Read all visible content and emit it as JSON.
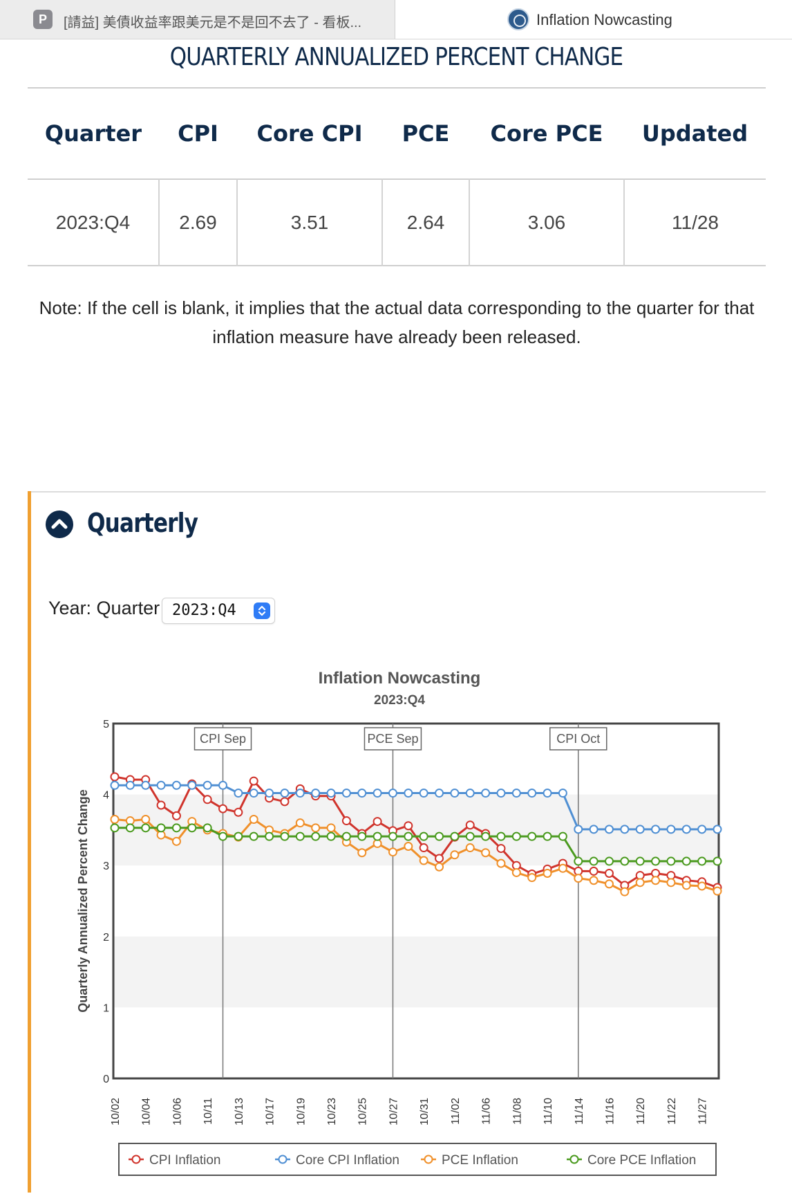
{
  "tabs": [
    {
      "favicon": "P",
      "title": "[請益] 美債收益率跟美元是不是回不去了 - 看板..."
    },
    {
      "favicon": "fed-seal-icon",
      "title": "Inflation Nowcasting"
    }
  ],
  "section_title": "QUARTERLY ANNUALIZED PERCENT CHANGE",
  "table": {
    "headers": [
      "Quarter",
      "CPI",
      "Core CPI",
      "PCE",
      "Core PCE",
      "Updated"
    ],
    "rows": [
      [
        "2023:Q4",
        "2.69",
        "3.51",
        "2.64",
        "3.06",
        "11/28"
      ]
    ]
  },
  "note": "Note: If the cell is blank, it implies that the actual data corresponding to the quarter for that inflation measure have already been released.",
  "panel": {
    "title": "Quarterly",
    "accent_color": "#f0a031"
  },
  "selector": {
    "label": "Year: Quarter",
    "value": "2023:Q4"
  },
  "chart_data": {
    "type": "line",
    "title": "Inflation Nowcasting",
    "subtitle": "2023:Q4",
    "ylabel": "Quarterly Annualized Percent Change",
    "ylim": [
      0,
      5
    ],
    "yticks": [
      0,
      1,
      2,
      3,
      4,
      5
    ],
    "x": [
      "10/02",
      "10/03",
      "10/04",
      "10/05",
      "10/06",
      "10/10",
      "10/11",
      "10/12",
      "10/13",
      "10/16",
      "10/17",
      "10/18",
      "10/19",
      "10/20",
      "10/23",
      "10/24",
      "10/25",
      "10/26",
      "10/27",
      "10/30",
      "10/31",
      "11/01",
      "11/02",
      "11/03",
      "11/06",
      "11/07",
      "11/08",
      "11/09",
      "11/10",
      "11/13",
      "11/14",
      "11/15",
      "11/16",
      "11/17",
      "11/20",
      "11/21",
      "11/22",
      "11/24",
      "11/27",
      "11/28"
    ],
    "xtick_labels": [
      "10/02",
      "10/04",
      "10/06",
      "10/11",
      "10/13",
      "10/17",
      "10/19",
      "10/23",
      "10/25",
      "10/27",
      "10/31",
      "11/02",
      "11/06",
      "11/08",
      "11/10",
      "11/14",
      "11/16",
      "11/20",
      "11/22",
      "11/27"
    ],
    "bands": [
      [
        3,
        4
      ],
      [
        1,
        2
      ]
    ],
    "event_lines": [
      {
        "label": "CPI Sep",
        "x": "10/12"
      },
      {
        "label": "PCE Sep",
        "x": "10/27"
      },
      {
        "label": "CPI Oct",
        "x": "11/14"
      }
    ],
    "series": [
      {
        "name": "CPI Inflation",
        "color": "#d0342c",
        "values": [
          4.25,
          4.21,
          4.21,
          3.85,
          3.7,
          4.15,
          3.93,
          3.8,
          3.75,
          4.19,
          3.95,
          3.9,
          4.08,
          3.98,
          3.98,
          3.63,
          3.45,
          3.62,
          3.49,
          3.56,
          3.25,
          3.1,
          3.4,
          3.57,
          3.45,
          3.24,
          3.0,
          2.88,
          2.95,
          3.03,
          2.92,
          2.92,
          2.89,
          2.72,
          2.86,
          2.89,
          2.86,
          2.79,
          2.77,
          2.69
        ]
      },
      {
        "name": "Core CPI Inflation",
        "color": "#4f8fd3",
        "values": [
          4.13,
          4.13,
          4.13,
          4.13,
          4.13,
          4.13,
          4.13,
          4.13,
          4.02,
          4.02,
          4.02,
          4.02,
          4.02,
          4.02,
          4.02,
          4.02,
          4.02,
          4.02,
          4.02,
          4.02,
          4.02,
          4.02,
          4.02,
          4.02,
          4.02,
          4.02,
          4.02,
          4.02,
          4.02,
          4.02,
          3.51,
          3.51,
          3.51,
          3.51,
          3.51,
          3.51,
          3.51,
          3.51,
          3.51,
          3.51
        ]
      },
      {
        "name": "PCE Inflation",
        "color": "#f0902a",
        "values": [
          3.65,
          3.63,
          3.65,
          3.43,
          3.34,
          3.62,
          3.5,
          3.45,
          3.4,
          3.65,
          3.5,
          3.45,
          3.6,
          3.53,
          3.53,
          3.33,
          3.18,
          3.31,
          3.19,
          3.27,
          3.07,
          2.98,
          3.15,
          3.25,
          3.18,
          3.03,
          2.9,
          2.83,
          2.89,
          2.96,
          2.82,
          2.79,
          2.74,
          2.63,
          2.76,
          2.79,
          2.76,
          2.72,
          2.71,
          2.64
        ]
      },
      {
        "name": "Core PCE Inflation",
        "color": "#4a9a1e",
        "values": [
          3.53,
          3.53,
          3.53,
          3.53,
          3.53,
          3.53,
          3.53,
          3.41,
          3.41,
          3.41,
          3.41,
          3.41,
          3.41,
          3.41,
          3.41,
          3.41,
          3.41,
          3.41,
          3.41,
          3.41,
          3.41,
          3.41,
          3.41,
          3.41,
          3.41,
          3.41,
          3.41,
          3.41,
          3.41,
          3.41,
          3.06,
          3.06,
          3.06,
          3.06,
          3.06,
          3.06,
          3.06,
          3.06,
          3.06,
          3.06
        ]
      }
    ],
    "legend_position": "bottom",
    "grid": false
  }
}
